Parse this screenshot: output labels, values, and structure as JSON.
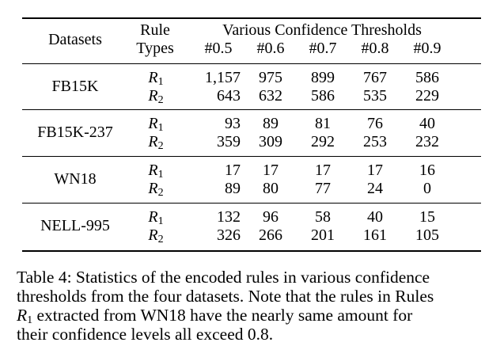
{
  "table": {
    "header": {
      "datasets": "Datasets",
      "rule_line1": "Rule",
      "rule_line2": "Types",
      "group_title": "Various Confidence Thresholds",
      "thresholds": [
        "#0.5",
        "#0.6",
        "#0.7",
        "#0.8",
        "#0.9"
      ]
    },
    "rows": [
      {
        "dataset": "FB15K",
        "rules": [
          {
            "type": "R",
            "sub": "1",
            "values": [
              "1,157",
              "975",
              "899",
              "767",
              "586"
            ]
          },
          {
            "type": "R",
            "sub": "2",
            "values": [
              "643",
              "632",
              "586",
              "535",
              "229"
            ]
          }
        ]
      },
      {
        "dataset": "FB15K-237",
        "rules": [
          {
            "type": "R",
            "sub": "1",
            "values": [
              "93",
              "89",
              "81",
              "76",
              "40"
            ]
          },
          {
            "type": "R",
            "sub": "2",
            "values": [
              "359",
              "309",
              "292",
              "253",
              "232"
            ]
          }
        ]
      },
      {
        "dataset": "WN18",
        "rules": [
          {
            "type": "R",
            "sub": "1",
            "values": [
              "17",
              "17",
              "17",
              "17",
              "16"
            ]
          },
          {
            "type": "R",
            "sub": "2",
            "values": [
              "89",
              "80",
              "77",
              "24",
              "0"
            ]
          }
        ]
      },
      {
        "dataset": "NELL-995",
        "rules": [
          {
            "type": "R",
            "sub": "1",
            "values": [
              "132",
              "96",
              "58",
              "40",
              "15"
            ]
          },
          {
            "type": "R",
            "sub": "2",
            "values": [
              "326",
              "266",
              "201",
              "161",
              "105"
            ]
          }
        ]
      }
    ]
  },
  "caption": {
    "line1": "Table 4: Statistics of the encoded rules in various confidence",
    "line2": "thresholds from the four datasets. Note that the rules in Rules",
    "line3_math": "R",
    "line3_sub": "1",
    "line3_rest": " extracted from WN18 have the nearly same amount for",
    "line4": "their confidence levels all exceed 0.8."
  }
}
